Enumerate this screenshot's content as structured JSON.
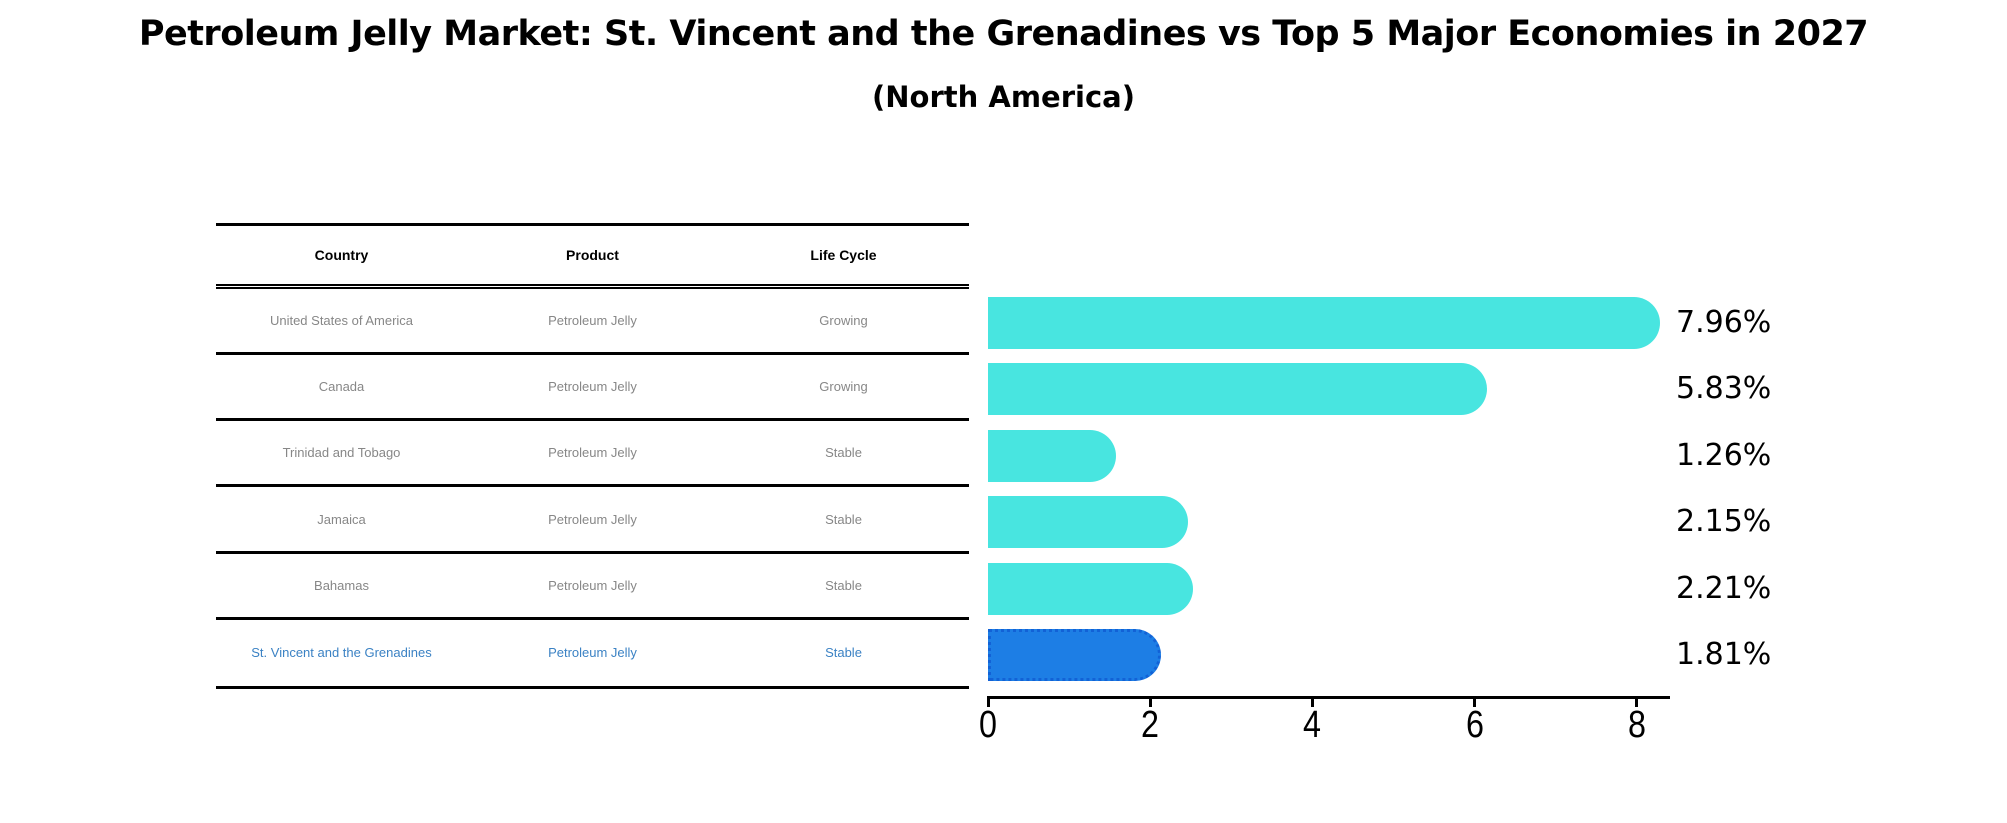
{
  "title": "Petroleum Jelly Market: St. Vincent and the Grenadines vs Top 5 Major Economies in 2027",
  "subtitle": "(North America)",
  "table": {
    "headers": [
      "Country",
      "Product",
      "Life Cycle"
    ],
    "rows": [
      {
        "country": "United States of America",
        "product": "Petroleum Jelly",
        "life_cycle": "Growing",
        "highlight": false
      },
      {
        "country": "Canada",
        "product": "Petroleum Jelly",
        "life_cycle": "Growing",
        "highlight": false
      },
      {
        "country": "Trinidad and Tobago",
        "product": "Petroleum Jelly",
        "life_cycle": "Stable",
        "highlight": false
      },
      {
        "country": "Jamaica",
        "product": "Petroleum Jelly",
        "life_cycle": "Stable",
        "highlight": false
      },
      {
        "country": "Bahamas",
        "product": "Petroleum Jelly",
        "life_cycle": "Stable",
        "highlight": false
      },
      {
        "country": "St. Vincent and the Grenadines",
        "product": "Petroleum Jelly",
        "life_cycle": "Stable",
        "highlight": true
      }
    ]
  },
  "chart_data": {
    "type": "bar",
    "orientation": "horizontal",
    "title": "Petroleum Jelly Market: St. Vincent and the Grenadines vs Top 5 Major Economies in 2027",
    "subtitle": "(North America)",
    "categories": [
      "United States of America",
      "Canada",
      "Trinidad and Tobago",
      "Jamaica",
      "Bahamas",
      "St. Vincent and the Grenadines"
    ],
    "values": [
      7.96,
      5.83,
      1.26,
      2.15,
      2.21,
      1.81
    ],
    "value_labels": [
      "7.96%",
      "5.83%",
      "1.26%",
      "2.15%",
      "2.21%",
      "1.81%"
    ],
    "xlabel": "",
    "ylabel": "",
    "xticks": [
      0,
      2,
      4,
      6,
      8
    ],
    "xlim": [
      0,
      8.4
    ],
    "grid": false,
    "legend": false,
    "bar_color": "#48E5E0",
    "highlight_color": "#1D7EE5",
    "highlight_border_color": "#1262D6",
    "highlight_index": 5
  },
  "colors": {
    "background": "#FFFFFF",
    "line": "#000000",
    "header_text": "#000000",
    "row_text": "#878787",
    "highlight_text": "#3B82C4"
  }
}
